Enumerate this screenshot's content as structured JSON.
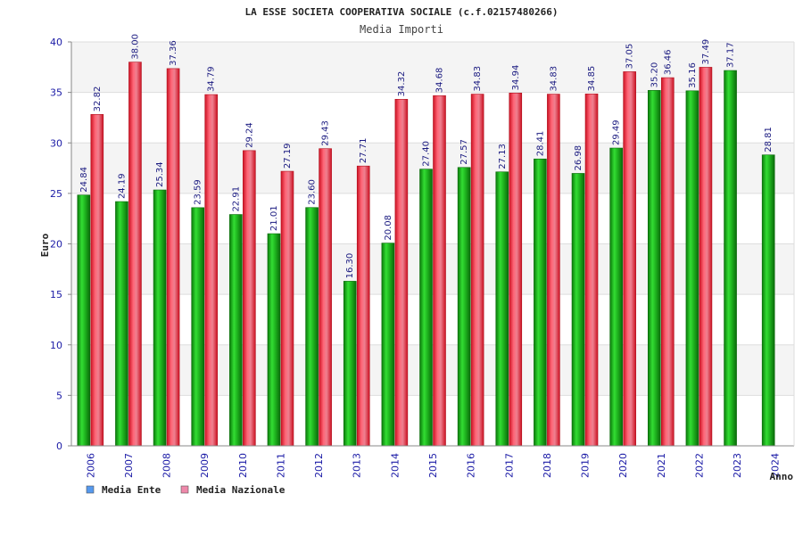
{
  "chart_data": {
    "type": "bar",
    "title": "LA ESSE SOCIETA COOPERATIVA SOCIALE (c.f.02157480266)",
    "subtitle": "Media Importi",
    "xlabel": "Anno",
    "ylabel": "Euro",
    "ylim": [
      0,
      40
    ],
    "yticks": [
      0,
      5,
      10,
      15,
      20,
      25,
      30,
      35,
      40
    ],
    "grid": true,
    "legend_position": "bottom-left",
    "categories": [
      "2006",
      "2007",
      "2008",
      "2009",
      "2010",
      "2011",
      "2012",
      "2013",
      "2014",
      "2015",
      "2016",
      "2017",
      "2018",
      "2019",
      "2020",
      "2021",
      "2022",
      "2023",
      "2024"
    ],
    "series": [
      {
        "name": "Media Ente",
        "color": "#22bb22",
        "legend_color": "#5599ee",
        "values": [
          24.84,
          24.19,
          25.34,
          23.59,
          22.91,
          21.01,
          23.6,
          16.3,
          20.08,
          27.4,
          27.57,
          27.13,
          28.41,
          26.98,
          29.49,
          35.2,
          35.16,
          37.17,
          28.81
        ],
        "labels": [
          "24.84",
          "24.19",
          "25.34",
          "23.59",
          "22.91",
          "21.01",
          "23.60",
          "16.30",
          "20.08",
          "27.40",
          "27.57",
          "27.13",
          "28.41",
          "26.98",
          "29.49",
          "35.20",
          "35.16",
          "37.17",
          "28.81"
        ]
      },
      {
        "name": "Media Nazionale",
        "color": "#ee3344",
        "legend_color": "#ee88aa",
        "values": [
          32.82,
          38.0,
          37.36,
          34.79,
          29.24,
          27.19,
          29.43,
          27.71,
          34.32,
          34.68,
          34.83,
          34.94,
          34.83,
          34.85,
          37.05,
          36.46,
          37.49,
          null,
          null
        ],
        "labels": [
          "32.82",
          "38.00",
          "37.36",
          "34.79",
          "29.24",
          "27.19",
          "29.43",
          "27.71",
          "34.32",
          "34.68",
          "34.83",
          "34.94",
          "34.83",
          "34.85",
          "37.05",
          "36.46",
          "37.49",
          "",
          ""
        ]
      }
    ]
  }
}
